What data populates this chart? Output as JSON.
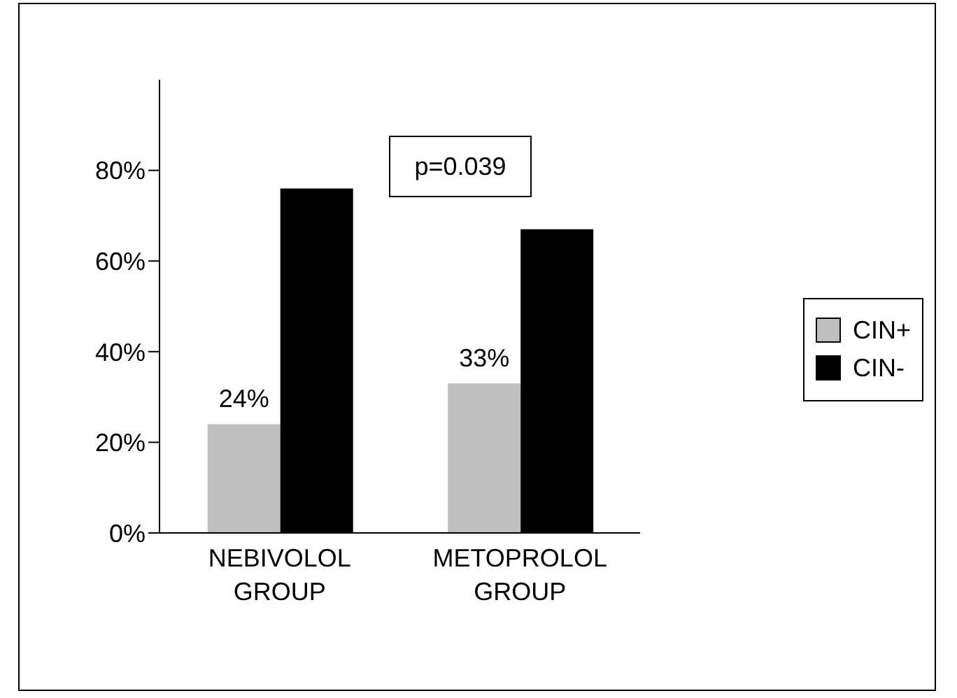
{
  "chart_data": {
    "type": "bar",
    "categories": [
      "NEBIVOLOL GROUP",
      "METOPROLOL GROUP"
    ],
    "series": [
      {
        "name": "CIN+",
        "color": "#bfbfbf",
        "values": [
          24,
          33
        ],
        "value_labels": [
          "24%",
          "33%"
        ]
      },
      {
        "name": "CIN-",
        "color": "#000000",
        "values": [
          76,
          67
        ]
      }
    ],
    "ylim": [
      0,
      100
    ],
    "yticks": [
      {
        "value": 0,
        "label": "0%"
      },
      {
        "value": 20,
        "label": "20%"
      },
      {
        "value": 40,
        "label": "40%"
      },
      {
        "value": 60,
        "label": "60%"
      },
      {
        "value": 80,
        "label": "80%"
      }
    ],
    "grid": false,
    "legend": "right",
    "annotations": [
      "p=0.039"
    ]
  }
}
